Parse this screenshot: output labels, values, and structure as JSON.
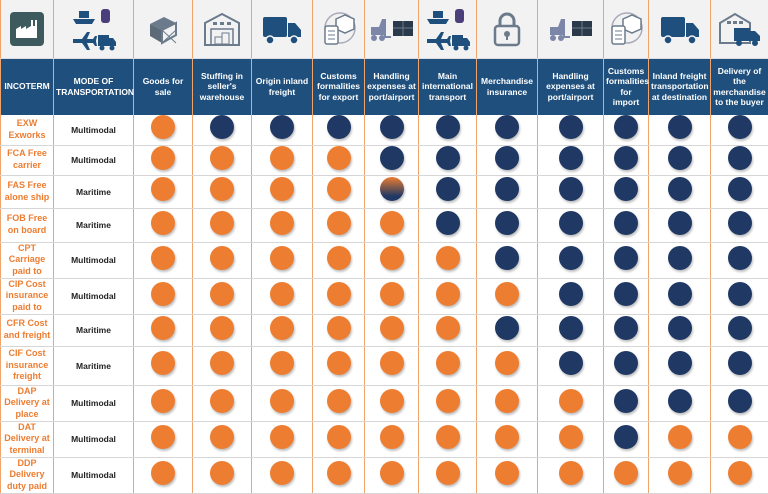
{
  "colors": {
    "header_bg": "#1e4f7d",
    "seller": "#ed7d31",
    "buyer": "#1f3864",
    "icon": "#1e4f7d",
    "border": "#f0a46c"
  },
  "header": {
    "columns": [
      {
        "label": "INCOTERM",
        "icon": "factory-icon"
      },
      {
        "label": "MODE OF TRANSPORTATION",
        "icon": "multimodal-transport-icon"
      },
      {
        "label": "Goods for sale",
        "icon": "box-icon"
      },
      {
        "label": "Stuffing in seller's warehouse",
        "icon": "warehouse-icon"
      },
      {
        "label": "Origin inland freight",
        "icon": "truck-icon"
      },
      {
        "label": "Customs formalities for export",
        "icon": "customs-clipboard-icon"
      },
      {
        "label": "Handling expenses at port/airport",
        "icon": "forklift-icon"
      },
      {
        "label": "Main international transport",
        "icon": "multimodal-transport-icon"
      },
      {
        "label": "Merchandise insurance",
        "icon": "lock-icon"
      },
      {
        "label": "Handling expenses at port/airport",
        "icon": "forklift-icon"
      },
      {
        "label": "Customs formalities for import",
        "icon": "customs-clipboard-icon"
      },
      {
        "label": "Inland freight transportation at destination",
        "icon": "truck-icon"
      },
      {
        "label": "Delivery of the merchandise to the buyer",
        "icon": "warehouse-truck-icon"
      }
    ]
  },
  "rows": [
    {
      "term": "EXW Exworks",
      "mode": "Multimodal",
      "cells": [
        "o",
        "n",
        "n",
        "n",
        "n",
        "n",
        "n",
        "n",
        "n",
        "n",
        "n"
      ]
    },
    {
      "term": "FCA Free carrier",
      "mode": "Multimodal",
      "cells": [
        "o",
        "o",
        "o",
        "o",
        "n",
        "n",
        "n",
        "n",
        "n",
        "n",
        "n"
      ]
    },
    {
      "term": "FAS Free alone ship",
      "mode": "Maritime",
      "cells": [
        "o",
        "o",
        "o",
        "o",
        "g",
        "n",
        "n",
        "n",
        "n",
        "n",
        "n"
      ]
    },
    {
      "term": "FOB Free on board",
      "mode": "Maritime",
      "cells": [
        "o",
        "o",
        "o",
        "o",
        "o",
        "n",
        "n",
        "n",
        "n",
        "n",
        "n"
      ]
    },
    {
      "term": "CPT Carriage paid to",
      "mode": "Multimodal",
      "cells": [
        "o",
        "o",
        "o",
        "o",
        "o",
        "o",
        "n",
        "n",
        "n",
        "n",
        "n"
      ]
    },
    {
      "term": "CIP Cost insurance paid to",
      "mode": "Multimodal",
      "cells": [
        "o",
        "o",
        "o",
        "o",
        "o",
        "o",
        "o",
        "n",
        "n",
        "n",
        "n"
      ]
    },
    {
      "term": "CFR Cost and freight",
      "mode": "Maritime",
      "cells": [
        "o",
        "o",
        "o",
        "o",
        "o",
        "o",
        "n",
        "n",
        "n",
        "n",
        "n"
      ]
    },
    {
      "term": "CIF Cost insurance freight",
      "mode": "Maritime",
      "cells": [
        "o",
        "o",
        "o",
        "o",
        "o",
        "o",
        "o",
        "n",
        "n",
        "n",
        "n"
      ]
    },
    {
      "term": "DAP Delivery at place",
      "mode": "Multimodal",
      "cells": [
        "o",
        "o",
        "o",
        "o",
        "o",
        "o",
        "o",
        "o",
        "n",
        "n",
        "n"
      ]
    },
    {
      "term": "DAT Delivery at terminal",
      "mode": "Multimodal",
      "cells": [
        "o",
        "o",
        "o",
        "o",
        "o",
        "o",
        "o",
        "o",
        "n",
        "o",
        "o"
      ]
    },
    {
      "term": "DDP Delivery duty paid",
      "mode": "Multimodal",
      "cells": [
        "o",
        "o",
        "o",
        "o",
        "o",
        "o",
        "o",
        "o",
        "o",
        "o",
        "o"
      ]
    }
  ]
}
